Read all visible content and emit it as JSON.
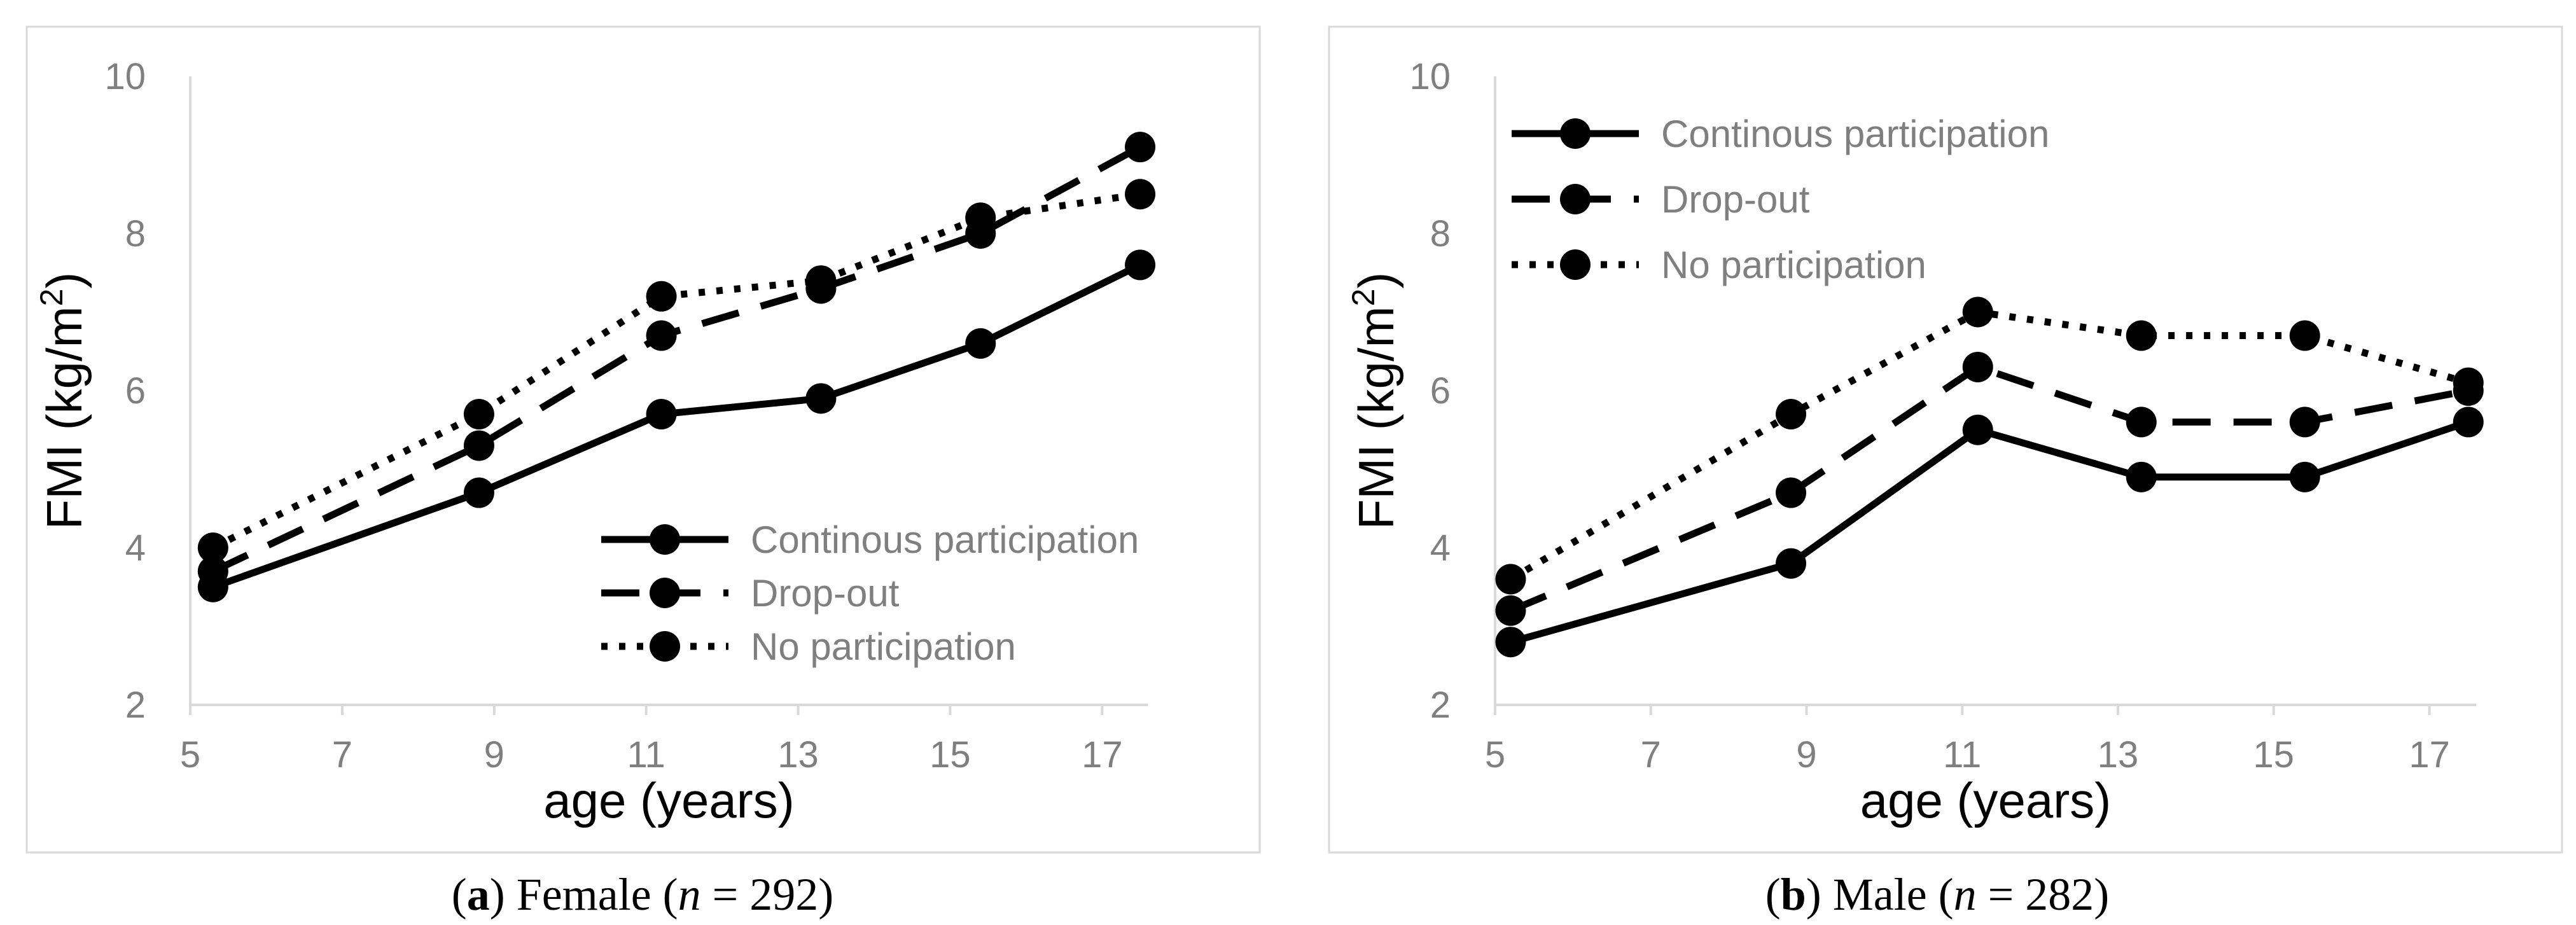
{
  "chart_data": [
    {
      "type": "line",
      "panel_letter": "a",
      "caption_title": "Female",
      "caption_n_symbol": "n",
      "caption_n_value": "292",
      "xlabel": "age (years)",
      "ylabel_prefix": "FMI (kg/m",
      "ylabel_sup": "2",
      "ylabel_suffix": ")",
      "xlim": [
        5,
        17.6
      ],
      "ylim": [
        2,
        10
      ],
      "x_ticks": [
        5,
        7,
        9,
        11,
        13,
        15,
        17
      ],
      "y_ticks": [
        2,
        4,
        6,
        8,
        10
      ],
      "legend_position": "bottom-right",
      "x": [
        5.3,
        8.8,
        11.2,
        13.3,
        15.4,
        17.5
      ],
      "series": [
        {
          "name": "Continous participation",
          "style": "solid",
          "values": [
            3.5,
            4.7,
            5.7,
            5.9,
            6.6,
            7.6
          ]
        },
        {
          "name": "Drop-out",
          "style": "dashed",
          "values": [
            3.7,
            5.3,
            6.7,
            7.3,
            8.0,
            9.1
          ]
        },
        {
          "name": "No participation",
          "style": "dotted",
          "values": [
            4.0,
            5.7,
            7.2,
            7.4,
            8.2,
            8.5
          ]
        }
      ]
    },
    {
      "type": "line",
      "panel_letter": "b",
      "caption_title": "Male",
      "caption_n_symbol": "n",
      "caption_n_value": "282",
      "xlabel": "age (years)",
      "ylabel_prefix": "FMI (kg/m",
      "ylabel_sup": "2",
      "ylabel_suffix": ")",
      "xlim": [
        5,
        17.6
      ],
      "ylim": [
        2,
        10
      ],
      "x_ticks": [
        5,
        7,
        9,
        11,
        13,
        15,
        17
      ],
      "y_ticks": [
        2,
        4,
        6,
        8,
        10
      ],
      "legend_position": "top-left",
      "x": [
        5.2,
        8.8,
        11.2,
        13.3,
        15.4,
        17.5
      ],
      "series": [
        {
          "name": "Continous participation",
          "style": "solid",
          "values": [
            2.8,
            3.8,
            5.5,
            4.9,
            4.9,
            5.6
          ]
        },
        {
          "name": "Drop-out",
          "style": "dashed",
          "values": [
            3.2,
            4.7,
            6.3,
            5.6,
            5.6,
            6.0
          ]
        },
        {
          "name": "No participation",
          "style": "dotted",
          "values": [
            3.6,
            5.7,
            7.0,
            6.7,
            6.7,
            6.1
          ]
        }
      ]
    }
  ]
}
